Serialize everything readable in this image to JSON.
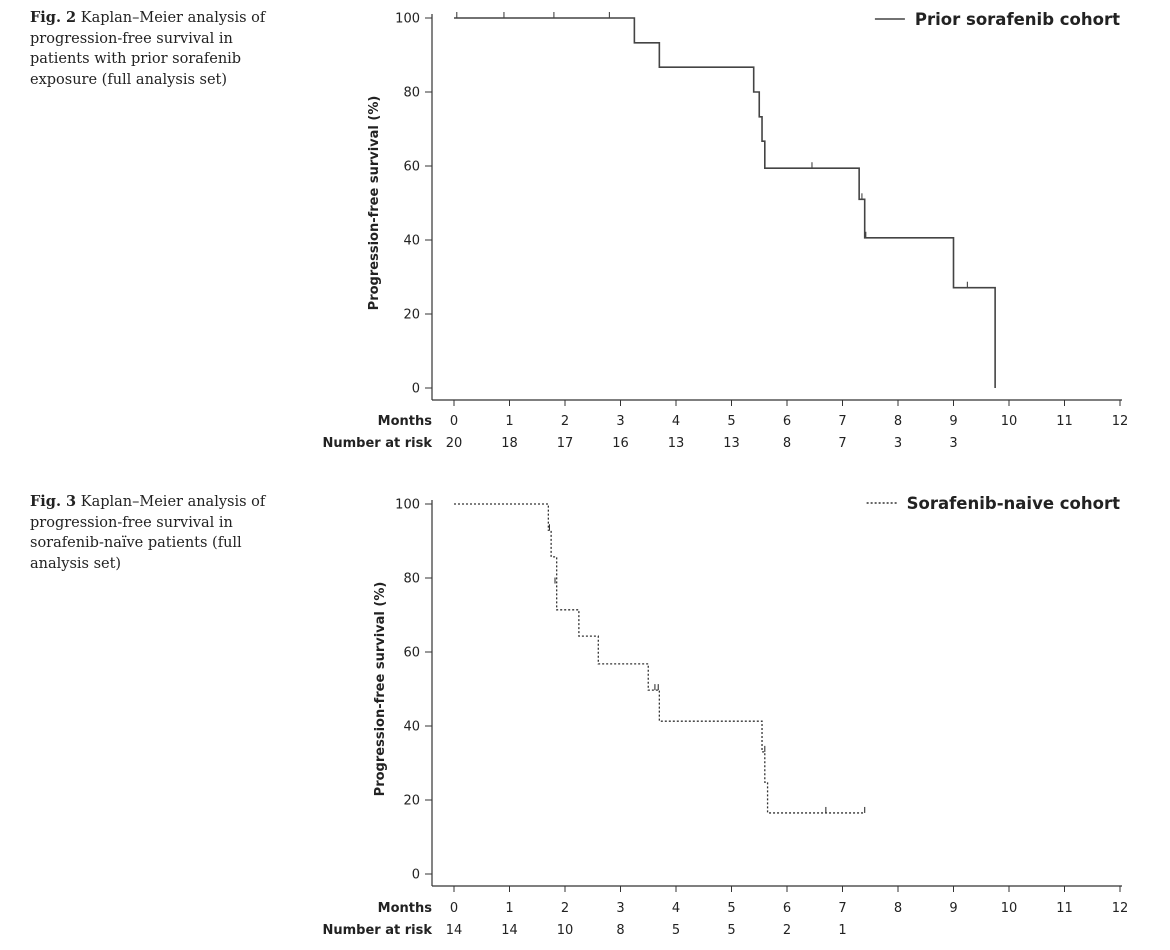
{
  "chart_data": [
    {
      "type": "line",
      "caption_fig": "Fig. 2",
      "caption_text": "Kaplan–Meier analysis of progression-free survival in patients with prior sorafenib exposure (full analysis set)",
      "ylabel": "Progression-free survival (%)",
      "xlabel": "Months",
      "ylim": [
        0,
        100
      ],
      "xlim": [
        0,
        12
      ],
      "yticks": [
        0,
        20,
        40,
        60,
        80,
        100
      ],
      "xticks": [
        0,
        1,
        2,
        3,
        4,
        5,
        6,
        7,
        8,
        9,
        10,
        11,
        12
      ],
      "legend_position": "top-right",
      "series": [
        {
          "name": "Prior sorafenib cohort",
          "line_style": "solid",
          "color": "#444444",
          "steps": [
            [
              0,
              100
            ],
            [
              3.25,
              93.3
            ],
            [
              3.7,
              86.7
            ],
            [
              5.4,
              80.0
            ],
            [
              5.5,
              73.3
            ],
            [
              5.55,
              66.7
            ],
            [
              5.6,
              59.4
            ],
            [
              7.3,
              51.0
            ],
            [
              7.4,
              40.6
            ],
            [
              9.0,
              27.1
            ],
            [
              9.75,
              0
            ]
          ],
          "end_x": 9.75,
          "censored": [
            [
              0.05,
              100
            ],
            [
              0.9,
              100
            ],
            [
              1.8,
              100
            ],
            [
              2.8,
              100
            ],
            [
              6.45,
              59.4
            ],
            [
              7.35,
              51.0
            ],
            [
              7.42,
              40.6
            ],
            [
              9.25,
              27.1
            ]
          ]
        }
      ],
      "number_at_risk_label": "Number at risk",
      "number_at_risk": [
        "20",
        "18",
        "17",
        "16",
        "13",
        "13",
        "8",
        "7",
        "3",
        "3"
      ]
    },
    {
      "type": "line",
      "caption_fig": "Fig. 3",
      "caption_text": "Kaplan–Meier analysis of progression-free survival in sorafenib-naïve patients (full analysis set)",
      "ylabel": "Progression-free survival (%)",
      "xlabel": "Months",
      "ylim": [
        0,
        100
      ],
      "xlim": [
        0,
        12
      ],
      "yticks": [
        0,
        20,
        40,
        60,
        80,
        100
      ],
      "xticks": [
        0,
        1,
        2,
        3,
        4,
        5,
        6,
        7,
        8,
        9,
        10,
        11,
        12
      ],
      "legend_position": "top-right",
      "series": [
        {
          "name": "Sorafenib-naive cohort",
          "line_style": "dotted",
          "color": "#333333",
          "steps": [
            [
              0,
              100
            ],
            [
              1.7,
              92.9
            ],
            [
              1.75,
              85.7
            ],
            [
              1.85,
              71.4
            ],
            [
              2.25,
              64.3
            ],
            [
              2.6,
              56.8
            ],
            [
              3.5,
              49.7
            ],
            [
              3.7,
              41.3
            ],
            [
              5.55,
              33.0
            ],
            [
              5.6,
              24.8
            ],
            [
              5.65,
              16.5
            ]
          ],
          "end_x": 7.4,
          "censored": [
            [
              1.72,
              92.9
            ],
            [
              1.82,
              78.5
            ],
            [
              3.62,
              49.7
            ],
            [
              3.68,
              49.7
            ],
            [
              5.6,
              33.0
            ],
            [
              6.7,
              16.5
            ],
            [
              7.4,
              16.5
            ]
          ]
        }
      ],
      "number_at_risk_label": "Number at risk",
      "number_at_risk": [
        "14",
        "14",
        "10",
        "8",
        "5",
        "5",
        "2",
        "1"
      ]
    }
  ]
}
